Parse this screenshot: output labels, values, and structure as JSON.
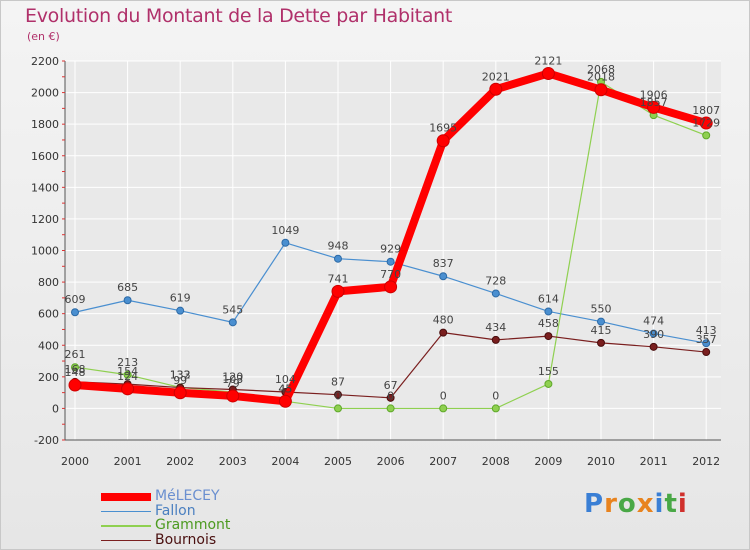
{
  "title": "Evolution du Montant de la Dette par Habitant",
  "subtitle": "(en €)",
  "logo": "Proxiti",
  "colors": {
    "title": "#b0306a",
    "grid": "#ffffff",
    "melecey": "#ff0000",
    "fallon": "#4a8fd0",
    "grammont": "#8fd050",
    "bournois": "#7a1f1f"
  },
  "chart_data": {
    "type": "line",
    "title": "Evolution du Montant de la Dette par Habitant",
    "subtitle": "(en €)",
    "x": [
      "2000",
      "2001",
      "2002",
      "2003",
      "2004",
      "2005",
      "2006",
      "2007",
      "2008",
      "2009",
      "2010",
      "2011",
      "2012"
    ],
    "ylim": [
      -200,
      2200
    ],
    "yticks": [
      -200,
      0,
      200,
      400,
      600,
      800,
      1000,
      1200,
      1400,
      1600,
      1800,
      2000,
      2200
    ],
    "grid": true,
    "legend_position": "bottom-left",
    "series": [
      {
        "name": "Fallon",
        "color": "#4a8fd0",
        "values": [
          609,
          685,
          619,
          545,
          1049,
          948,
          929,
          837,
          728,
          614,
          550,
          474,
          413
        ]
      },
      {
        "name": "Grammont",
        "color": "#8fd050",
        "values": [
          261,
          213,
          133,
          103,
          45,
          0,
          0,
          0,
          0,
          155,
          2068,
          1857,
          1729
        ]
      },
      {
        "name": "Bournois",
        "color": "#7a1f1f",
        "values": [
          168,
          154,
          132,
          120,
          104,
          87,
          67,
          480,
          434,
          458,
          415,
          390,
          357
        ]
      },
      {
        "name": "MéLECEY",
        "color": "#ff0000",
        "values": [
          148,
          124,
          99,
          79,
          45,
          741,
          770,
          1695,
          2021,
          2121,
          2018,
          1906,
          1807
        ]
      }
    ]
  }
}
